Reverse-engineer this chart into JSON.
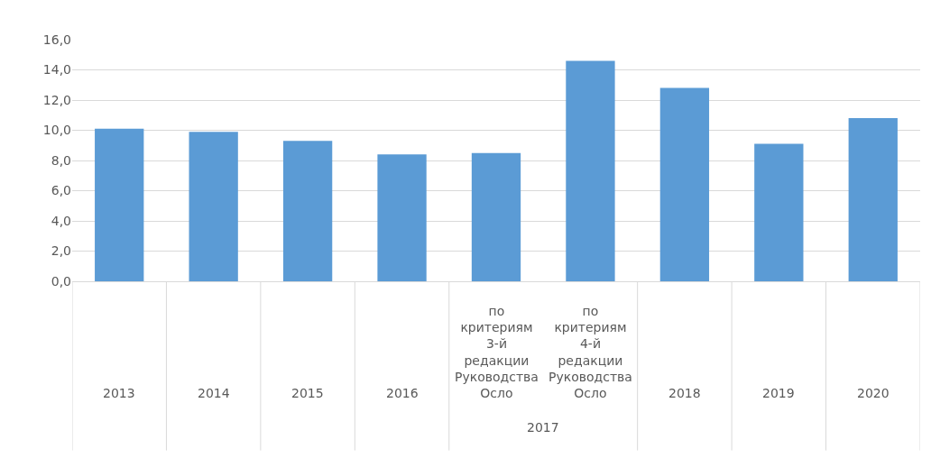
{
  "chart_data": {
    "type": "bar",
    "categories": [
      "2013",
      "2014",
      "2015",
      "2016",
      "по критериям 3-й редакции Руководства Осло",
      "по критериям 4-й редакции Руководства Осло",
      "2018",
      "2019",
      "2020"
    ],
    "values": [
      10.1,
      9.9,
      9.3,
      8.4,
      8.5,
      14.6,
      12.8,
      9.1,
      10.8
    ],
    "color": "#5b9bd5",
    "annotations": [
      "2017"
    ],
    "ylim": [
      0,
      16
    ],
    "yticks": [
      {
        "value": 0,
        "label": "0,0"
      },
      {
        "value": 2,
        "label": "2,0"
      },
      {
        "value": 4,
        "label": "4,0"
      },
      {
        "value": 6,
        "label": "6,0"
      },
      {
        "value": 8,
        "label": "8,0"
      },
      {
        "value": 10,
        "label": "10,0"
      },
      {
        "value": 12,
        "label": "12,0"
      },
      {
        "value": 14,
        "label": "14,0"
      },
      {
        "value": 16,
        "label": "16,0"
      }
    ],
    "grid": true
  }
}
